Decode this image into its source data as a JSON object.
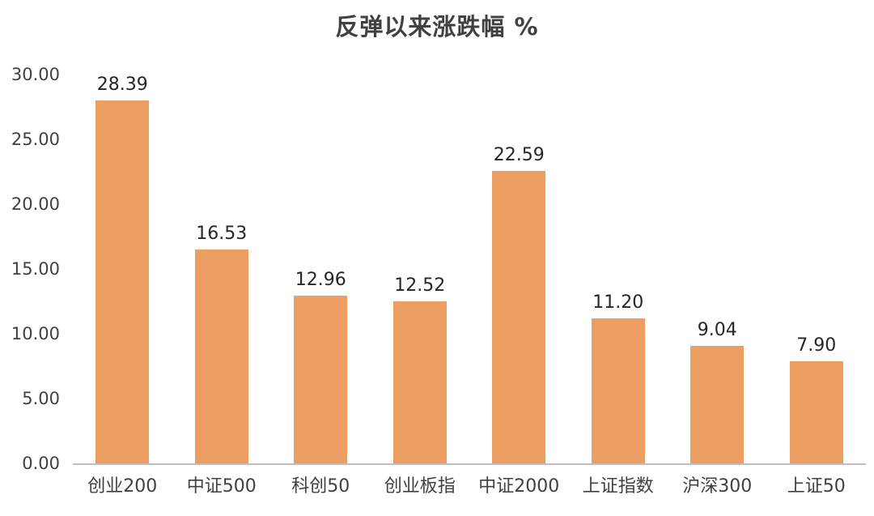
{
  "chart_data": {
    "type": "bar",
    "title": "反弹以来涨跌幅 %",
    "categories": [
      "创业200",
      "中证500",
      "科创50",
      "创业板指",
      "中证2000",
      "上证指数",
      "沪深300",
      "上证50"
    ],
    "values": [
      28.39,
      16.53,
      12.96,
      12.52,
      22.59,
      11.2,
      9.04,
      7.9
    ],
    "value_labels": [
      "28.39",
      "16.53",
      "12.96",
      "12.52",
      "22.59",
      "11.20",
      "9.04",
      "7.90"
    ],
    "y_ticks": [
      "0.00",
      "5.00",
      "10.00",
      "15.00",
      "20.00",
      "25.00",
      "30.00"
    ],
    "ylim": [
      0,
      30
    ],
    "xlabel": "",
    "ylabel": "",
    "grid": false,
    "legend": false,
    "bar_color": "#ed9e63",
    "axis_line_color": "#bfbfbf",
    "axis_text_color": "#404040",
    "label_text_color": "#262626"
  }
}
